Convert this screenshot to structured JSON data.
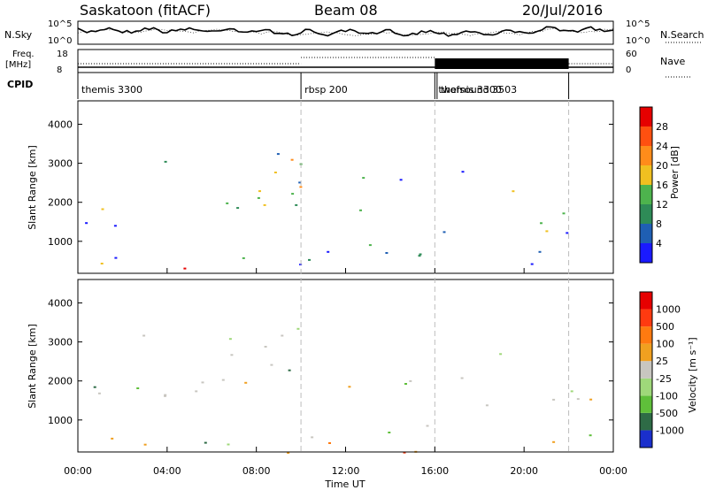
{
  "header": {
    "station": "Saskatoon (fitACF)",
    "beam": "Beam 08",
    "date": "20/Jul/2016"
  },
  "strip": {
    "nsky_label": "N.Sky",
    "nsky_ticks": [
      "10^5",
      "10^0"
    ],
    "nsearch_label": "N.Search",
    "nsearch_ticks": [
      "10^5",
      "10^0"
    ],
    "freq_label": "Freq.",
    "freq_unit": "[MHz]",
    "freq_ticks": [
      "18",
      "8"
    ],
    "nave_label": "Nave",
    "nave_ticks": [
      "60",
      "0"
    ],
    "cpid_label": "CPID",
    "cpid_segments": [
      {
        "name": "themis 3300",
        "start": 0,
        "end": 10
      },
      {
        "name": "rbsp 200",
        "start": 10,
        "end": 16
      },
      {
        "name": "twofsound 3503",
        "start": 16,
        "end": 16.1
      },
      {
        "name": "themis 3300",
        "start": 16.1,
        "end": 22
      },
      {
        "name": "",
        "start": 22,
        "end": 24
      }
    ]
  },
  "chart_data": [
    {
      "type": "heatmap",
      "name": "power-panel",
      "ylabel": "Slant Range [km]",
      "ylim": [
        180,
        4600
      ],
      "yticks": [
        "1000",
        "2000",
        "3000",
        "4000"
      ],
      "xlim": [
        0,
        24
      ],
      "colorbar": {
        "label": "Power [dB]",
        "ticks": [
          "4",
          "8",
          "12",
          "16",
          "20",
          "24",
          "28"
        ],
        "colors": [
          "#1a1aff",
          "#1f5fb3",
          "#2e8b57",
          "#4db34d",
          "#f0c020",
          "#ff8c1a",
          "#ff5010",
          "#e60000"
        ]
      }
    },
    {
      "type": "heatmap",
      "name": "velocity-panel",
      "ylabel": "Slant Range [km]",
      "ylim": [
        180,
        4600
      ],
      "yticks": [
        "1000",
        "2000",
        "3000",
        "4000"
      ],
      "xlim": [
        0,
        24
      ],
      "xlabel": "Time UT",
      "xticks": [
        "00:00",
        "04:00",
        "08:00",
        "12:00",
        "16:00",
        "20:00",
        "00:00"
      ],
      "colorbar": {
        "label": "Velocity [m s⁻¹]",
        "ticks": [
          "1000",
          "500",
          "100",
          "25",
          "-25",
          "-100",
          "-500",
          "-1000"
        ],
        "colors": [
          "#1a2fcc",
          "#2e6b46",
          "#5fbf3a",
          "#9fd87a",
          "#c8c6c0",
          "#f0a020",
          "#ff7a10",
          "#ff3a10",
          "#e60000"
        ]
      }
    }
  ]
}
